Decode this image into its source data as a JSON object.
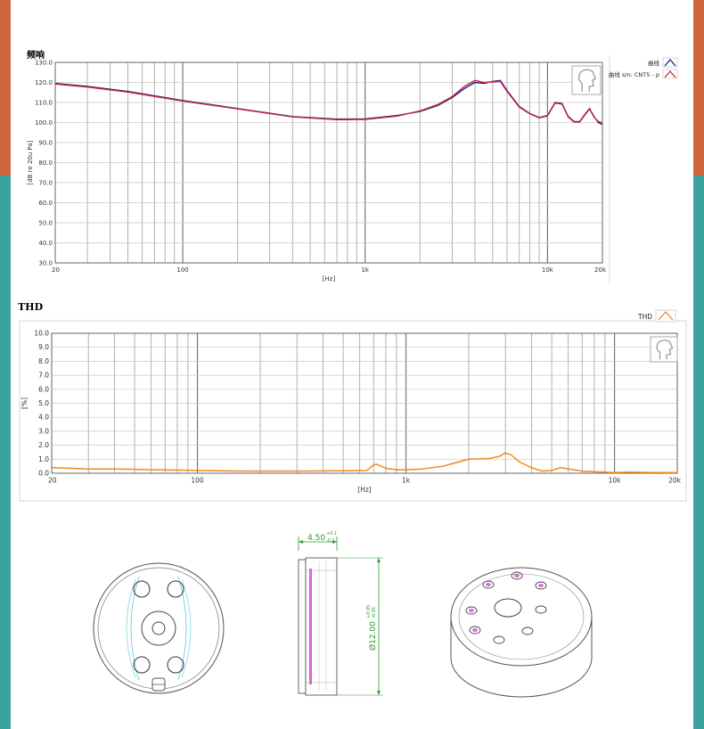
{
  "colors": {
    "accent_left": "#d0663f",
    "accent_bottom": "#3aa3a0",
    "fr_series_1": "#1c1c8c",
    "fr_series_2": "#cc2a3a",
    "thd_series": "#f08a1a",
    "dimension_green": "#2e9c2e",
    "magenta": "#d030d0",
    "cyan": "#5cc8d8"
  },
  "chart_data": [
    {
      "type": "line",
      "title": "频响",
      "xlabel": "[Hz]",
      "ylabel": "[dB re 20u Pa]",
      "xscale": "log",
      "xlim": [
        20,
        20000
      ],
      "ylim": [
        30,
        130
      ],
      "xticks": [
        20,
        100,
        1000,
        10000,
        20000
      ],
      "xtick_labels": [
        "20",
        "100",
        "1k",
        "10k",
        "20k"
      ],
      "yticks": [
        30,
        40,
        50,
        60,
        70,
        80,
        90,
        100,
        110,
        120,
        130
      ],
      "ytick_labels": [
        "30.0",
        "40.0",
        "50.0",
        "60.0",
        "70.0",
        "80.0",
        "90.0",
        "100.0",
        "110.0",
        "120.0",
        "130.0"
      ],
      "grid": true,
      "legend_position": "right",
      "series": [
        {
          "name": "曲线",
          "color": "#1c1c8c",
          "x": [
            20,
            30,
            50,
            100,
            200,
            400,
            700,
            1000,
            1500,
            2000,
            2500,
            3000,
            3500,
            4000,
            4500,
            5000,
            5500,
            6000,
            7000,
            8000,
            9000,
            10000,
            11000,
            12000,
            13000,
            14000,
            15000,
            16000,
            17000,
            18000,
            19000,
            20000
          ],
          "y": [
            119.5,
            118,
            115.5,
            111,
            107,
            103,
            101.7,
            101.8,
            103.5,
            105.5,
            108.5,
            112.5,
            117,
            120,
            119.5,
            120.5,
            121,
            116,
            108,
            104.5,
            102.5,
            103.5,
            110,
            109.5,
            103,
            100.5,
            100.5,
            104,
            107,
            103,
            100,
            99
          ]
        },
        {
          "name": "曲线 s/n: CNT5 - p",
          "color": "#cc2a3a",
          "x": [
            20,
            30,
            50,
            100,
            200,
            400,
            700,
            1000,
            1500,
            2000,
            2500,
            3000,
            3500,
            4000,
            4500,
            5000,
            5500,
            6000,
            7000,
            8000,
            9000,
            10000,
            11000,
            12000,
            13000,
            14000,
            15000,
            16000,
            17000,
            18000,
            19000,
            20000
          ],
          "y": [
            119.2,
            117.7,
            115.2,
            110.7,
            106.8,
            102.8,
            101.4,
            101.5,
            103.2,
            105.8,
            109,
            113,
            118,
            121,
            120,
            120.2,
            120.6,
            115.5,
            107.7,
            104.3,
            102.3,
            103.3,
            109.7,
            109.2,
            102.7,
            100.2,
            100.2,
            103.7,
            106.7,
            102.7,
            100.5,
            100
          ]
        }
      ]
    },
    {
      "type": "line",
      "title": "THD",
      "xlabel": "[Hz]",
      "ylabel": "[%]",
      "xscale": "log",
      "xlim": [
        20,
        20000
      ],
      "ylim": [
        0,
        10
      ],
      "xticks": [
        20,
        100,
        1000,
        10000,
        20000
      ],
      "xtick_labels": [
        "20",
        "100",
        "1k",
        "10k",
        "20k"
      ],
      "yticks": [
        0,
        1,
        2,
        3,
        4,
        5,
        6,
        7,
        8,
        9,
        10
      ],
      "ytick_labels": [
        "0.0",
        "1.0",
        "2.0",
        "3.0",
        "4.0",
        "5.0",
        "6.0",
        "7.0",
        "8.0",
        "9.0",
        "10.0"
      ],
      "grid": true,
      "legend_position": "top-right",
      "series": [
        {
          "name": "THD",
          "color": "#f08a1a",
          "x": [
            20,
            25,
            30,
            40,
            50,
            60,
            80,
            100,
            150,
            200,
            300,
            500,
            650,
            700,
            720,
            750,
            800,
            850,
            900,
            1000,
            1200,
            1500,
            2000,
            2500,
            2800,
            3000,
            3200,
            3500,
            4000,
            4500,
            5000,
            5500,
            6000,
            7000,
            8000,
            10000,
            12000,
            15000,
            20000
          ],
          "y": [
            0.4,
            0.35,
            0.3,
            0.3,
            0.28,
            0.25,
            0.22,
            0.2,
            0.16,
            0.15,
            0.15,
            0.18,
            0.2,
            0.6,
            0.65,
            0.55,
            0.35,
            0.3,
            0.25,
            0.25,
            0.3,
            0.5,
            1.0,
            1.05,
            1.2,
            1.45,
            1.3,
            0.8,
            0.4,
            0.15,
            0.2,
            0.4,
            0.3,
            0.15,
            0.1,
            0.05,
            0.08,
            0.05,
            0.05
          ]
        }
      ]
    }
  ],
  "drawings": {
    "front_view_icon": "speaker-front-view",
    "side_view_icon": "speaker-side-view",
    "iso_view_icon": "speaker-isometric-view",
    "watermark_icon": "head-silhouette-logo",
    "thickness_value": "4.50",
    "thickness_tol_upper": "+0.1",
    "thickness_tol_lower": "-0.1",
    "diameter_value": "Ø12.00",
    "diameter_tol_upper": "+0.05",
    "diameter_tol_lower": "-0.05"
  }
}
